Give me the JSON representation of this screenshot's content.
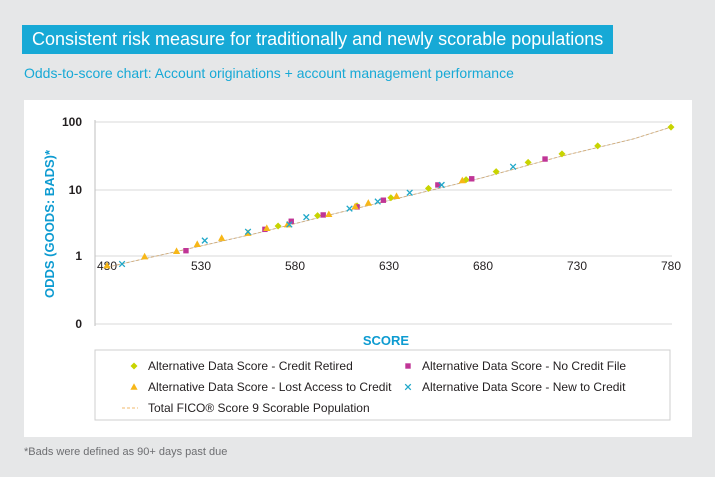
{
  "header": {
    "banner": "Consistent risk measure for traditionally and newly scorable populations",
    "subtitle": "Odds-to-score chart: Account originations + account management performance"
  },
  "footnote": "*Bads were defined as 90+ days past due",
  "colors": {
    "banner_bg": "#17a9d6",
    "subtitle": "#17a9d6",
    "axis_title": "#0d9bd1",
    "credit_retired": "#c8d400",
    "no_credit_file": "#c03596",
    "lost_access": "#f7b718",
    "new_to_credit": "#20a8c9",
    "total_line": "#f2b96b"
  },
  "chart_data": {
    "type": "scatter",
    "xlabel": "SCORE",
    "ylabel": "ODDS (GOODS: BADS)*",
    "xlim": [
      480,
      780
    ],
    "x_ticks": [
      "480",
      "530",
      "580",
      "630",
      "680",
      "730",
      "780"
    ],
    "y_scale": "log",
    "y_tick_labels": [
      "0",
      "1",
      "10",
      "100"
    ],
    "grid": "horizontal",
    "legend_position": "bottom",
    "series": [
      {
        "name": "Alternative Data Score - Credit Retired",
        "marker": "diamond",
        "color": "#c8d400",
        "points": [
          [
            571,
            2.8
          ],
          [
            592,
            4.0
          ],
          [
            613,
            5.6
          ],
          [
            631,
            7.4
          ],
          [
            651,
            10.2
          ],
          [
            671,
            13.8
          ],
          [
            687,
            18.2
          ],
          [
            704,
            25.0
          ],
          [
            722,
            33.5
          ],
          [
            741,
            44.0
          ],
          [
            780,
            84.0
          ]
        ]
      },
      {
        "name": "Alternative Data Score - No Credit File",
        "marker": "square",
        "color": "#c03596",
        "points": [
          [
            522,
            1.2
          ],
          [
            564,
            2.5
          ],
          [
            578,
            3.3
          ],
          [
            595,
            4.1
          ],
          [
            613,
            5.4
          ],
          [
            627,
            6.8
          ],
          [
            656,
            11.5
          ],
          [
            674,
            14.2
          ],
          [
            713,
            28.0
          ]
        ]
      },
      {
        "name": "Alternative Data Score - Lost Access to Credit",
        "marker": "triangle",
        "color": "#f7b718",
        "points": [
          [
            480,
            0.72
          ],
          [
            500,
            0.98
          ],
          [
            517,
            1.18
          ],
          [
            528,
            1.5
          ],
          [
            541,
            1.85
          ],
          [
            555,
            2.2
          ],
          [
            565,
            2.6
          ],
          [
            576,
            2.95
          ],
          [
            598,
            4.2
          ],
          [
            612,
            5.5
          ],
          [
            619,
            6.2
          ],
          [
            634,
            7.8
          ],
          [
            669,
            13.4
          ]
        ]
      },
      {
        "name": "Alternative Data Score - New to Credit",
        "marker": "x",
        "color": "#20a8c9",
        "points": [
          [
            488,
            0.76
          ],
          [
            532,
            1.7
          ],
          [
            555,
            2.3
          ],
          [
            577,
            2.95
          ],
          [
            586,
            3.8
          ],
          [
            609,
            5.1
          ],
          [
            624,
            6.5
          ],
          [
            641,
            8.8
          ],
          [
            658,
            11.5
          ],
          [
            696,
            21.5
          ]
        ]
      },
      {
        "name": "Total FICO® Score 9 Scorable Population",
        "marker": "dashed-line",
        "color": "#f2b96b",
        "points": [
          [
            480,
            0.68
          ],
          [
            520,
            1.22
          ],
          [
            560,
            2.2
          ],
          [
            600,
            4.2
          ],
          [
            640,
            7.9
          ],
          [
            680,
            14.8
          ],
          [
            720,
            30.0
          ],
          [
            760,
            56.0
          ],
          [
            780,
            84.0
          ]
        ]
      }
    ]
  }
}
